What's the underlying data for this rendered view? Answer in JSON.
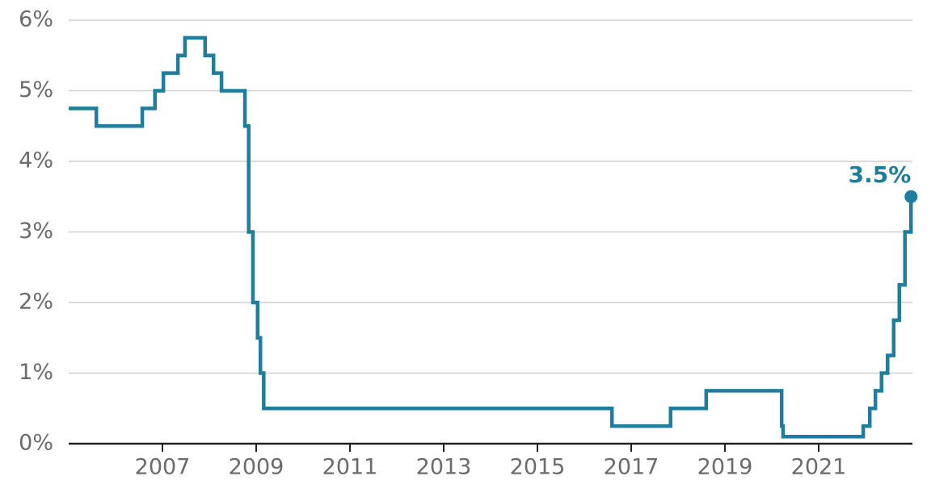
{
  "chart_data": {
    "type": "line",
    "step": "post",
    "x": [
      2005.0,
      2005.59,
      2006.57,
      2006.84,
      2007.02,
      2007.33,
      2007.48,
      2007.91,
      2008.09,
      2008.26,
      2008.76,
      2008.84,
      2008.93,
      2009.03,
      2009.09,
      2009.16,
      2016.59,
      2017.84,
      2018.6,
      2020.21,
      2020.24,
      2021.95,
      2022.09,
      2022.21,
      2022.34,
      2022.47,
      2022.6,
      2022.72,
      2022.84,
      2022.97
    ],
    "series": [
      {
        "color": "#1f7e9e",
        "values": [
          4.75,
          4.5,
          4.75,
          5.0,
          5.25,
          5.5,
          5.75,
          5.5,
          5.25,
          5.0,
          4.5,
          3.0,
          2.0,
          1.5,
          1.0,
          0.5,
          0.25,
          0.5,
          0.75,
          0.25,
          0.1,
          0.25,
          0.5,
          0.75,
          1.0,
          1.25,
          1.75,
          2.25,
          3.0,
          3.5
        ],
        "value_labels": [
          null,
          null,
          null,
          null,
          null,
          null,
          null,
          null,
          null,
          null,
          null,
          null,
          null,
          null,
          null,
          null,
          null,
          null,
          null,
          null,
          null,
          null,
          null,
          null,
          null,
          null,
          null,
          null,
          null,
          "3.5%"
        ]
      }
    ],
    "xlim": [
      2005,
      2023
    ],
    "xticks": [
      2007,
      2009,
      2011,
      2013,
      2015,
      2017,
      2019,
      2021
    ],
    "ylim": [
      0,
      6
    ],
    "yticks": [
      {
        "value": 0,
        "label": "0%"
      },
      {
        "value": 1,
        "label": "1%"
      },
      {
        "value": 2,
        "label": "2%"
      },
      {
        "value": 3,
        "label": "3%"
      },
      {
        "value": 4,
        "label": "4%"
      },
      {
        "value": 5,
        "label": "5%"
      },
      {
        "value": 6,
        "label": "6%"
      }
    ],
    "grid": true
  }
}
